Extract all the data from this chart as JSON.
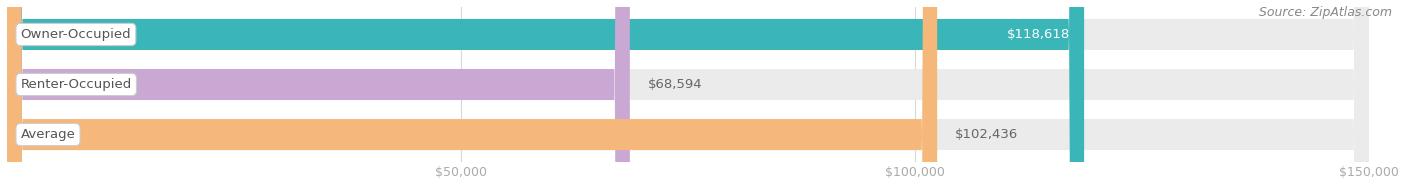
{
  "source": "Source: ZipAtlas.com",
  "categories": [
    "Owner-Occupied",
    "Renter-Occupied",
    "Average"
  ],
  "values": [
    118618,
    68594,
    102436
  ],
  "bar_colors": [
    "#3ab5b8",
    "#c9a8d4",
    "#f5b87a"
  ],
  "bar_bg_color": "#ebebeb",
  "label_texts": [
    "$118,618",
    "$68,594",
    "$102,436"
  ],
  "value_inside": [
    true,
    false,
    false
  ],
  "xlim": [
    0,
    150000
  ],
  "xticks": [
    0,
    50000,
    100000,
    150000
  ],
  "xtick_labels": [
    "",
    "$50,000",
    "$100,000",
    "$150,000"
  ],
  "bar_height": 0.62,
  "bar_gap": 0.18,
  "title_fontsize": 12,
  "label_fontsize": 9.5,
  "tick_fontsize": 9,
  "source_fontsize": 9,
  "bg_color": "#ffffff",
  "title_color": "#555555",
  "label_color_inside": "#ffffff",
  "label_color_outside": "#666666",
  "tick_color": "#aaaaaa",
  "source_color": "#888888",
  "cat_label_color": "#555555",
  "grid_color": "#d8d8d8",
  "bar_bg_border_color": "#d8d8d8"
}
